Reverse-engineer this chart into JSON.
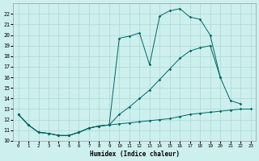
{
  "xlabel": "Humidex (Indice chaleur)",
  "bg_color": "#cdf0ee",
  "grid_color": "#aad8d4",
  "line_color": "#006666",
  "xlim": [
    -0.5,
    23.5
  ],
  "ylim": [
    10,
    23
  ],
  "xticks": [
    0,
    1,
    2,
    3,
    4,
    5,
    6,
    7,
    8,
    9,
    10,
    11,
    12,
    13,
    14,
    15,
    16,
    17,
    18,
    19,
    20,
    21,
    22,
    23
  ],
  "yticks": [
    10,
    11,
    12,
    13,
    14,
    15,
    16,
    17,
    18,
    19,
    20,
    21,
    22
  ],
  "line1_x": [
    0,
    1,
    2,
    3,
    4,
    5,
    6,
    7,
    8,
    9,
    10,
    11,
    12,
    13,
    14,
    15,
    16,
    17,
    18,
    19,
    20,
    21,
    22,
    23
  ],
  "line1_y": [
    12.5,
    11.5,
    10.8,
    10.7,
    10.5,
    10.5,
    10.8,
    11.2,
    11.4,
    11.5,
    11.6,
    11.7,
    11.8,
    11.9,
    12.0,
    12.1,
    12.3,
    12.5,
    12.6,
    12.7,
    12.8,
    12.9,
    13.0,
    13.0
  ],
  "line2_x": [
    0,
    1,
    2,
    3,
    4,
    5,
    6,
    7,
    8,
    9,
    10,
    11,
    12,
    13,
    14,
    15,
    16,
    17,
    18,
    19,
    20,
    21,
    22,
    23
  ],
  "line2_y": [
    12.5,
    11.5,
    10.8,
    10.7,
    10.5,
    10.5,
    10.8,
    11.2,
    11.4,
    11.5,
    12.5,
    13.2,
    14.0,
    14.8,
    15.8,
    16.8,
    17.8,
    18.5,
    18.8,
    19.0,
    16.0,
    13.8,
    13.5,
    null
  ],
  "line3_x": [
    0,
    1,
    2,
    3,
    4,
    5,
    6,
    7,
    8,
    9,
    10,
    11,
    12,
    13,
    14,
    15,
    16,
    17,
    18,
    19,
    20
  ],
  "line3_y": [
    12.5,
    11.5,
    10.8,
    10.7,
    10.5,
    10.5,
    10.8,
    11.2,
    11.4,
    11.5,
    19.7,
    19.9,
    20.2,
    17.2,
    21.8,
    22.3,
    22.5,
    21.7,
    21.5,
    20.0,
    16.0
  ]
}
